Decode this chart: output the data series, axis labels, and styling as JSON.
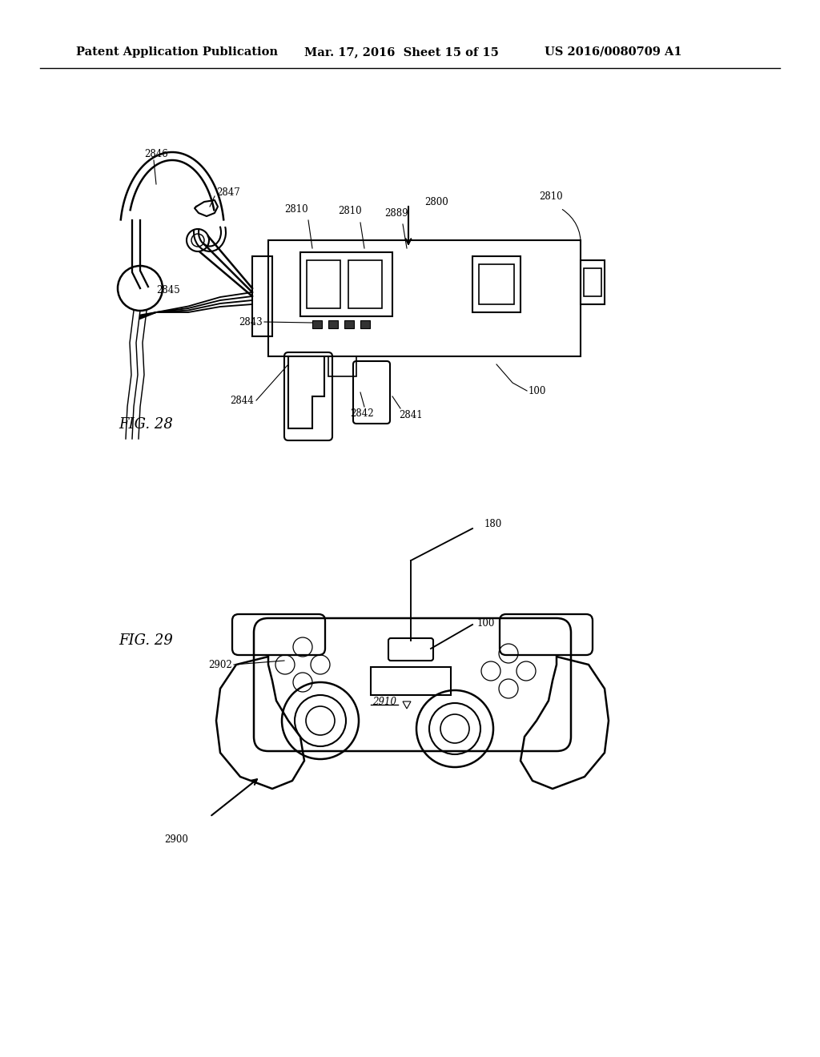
{
  "background_color": "#ffffff",
  "header_text": "Patent Application Publication",
  "header_date": "Mar. 17, 2016  Sheet 15 of 15",
  "header_patent": "US 2016/0080709 A1",
  "fig28_label": "FIG. 28",
  "fig29_label": "FIG. 29",
  "text_color": "#000000",
  "line_color": "#000000",
  "line_width": 1.5,
  "annotation_fontsize": 8.5,
  "header_fontsize": 10.5,
  "figure_label_fontsize": 13
}
